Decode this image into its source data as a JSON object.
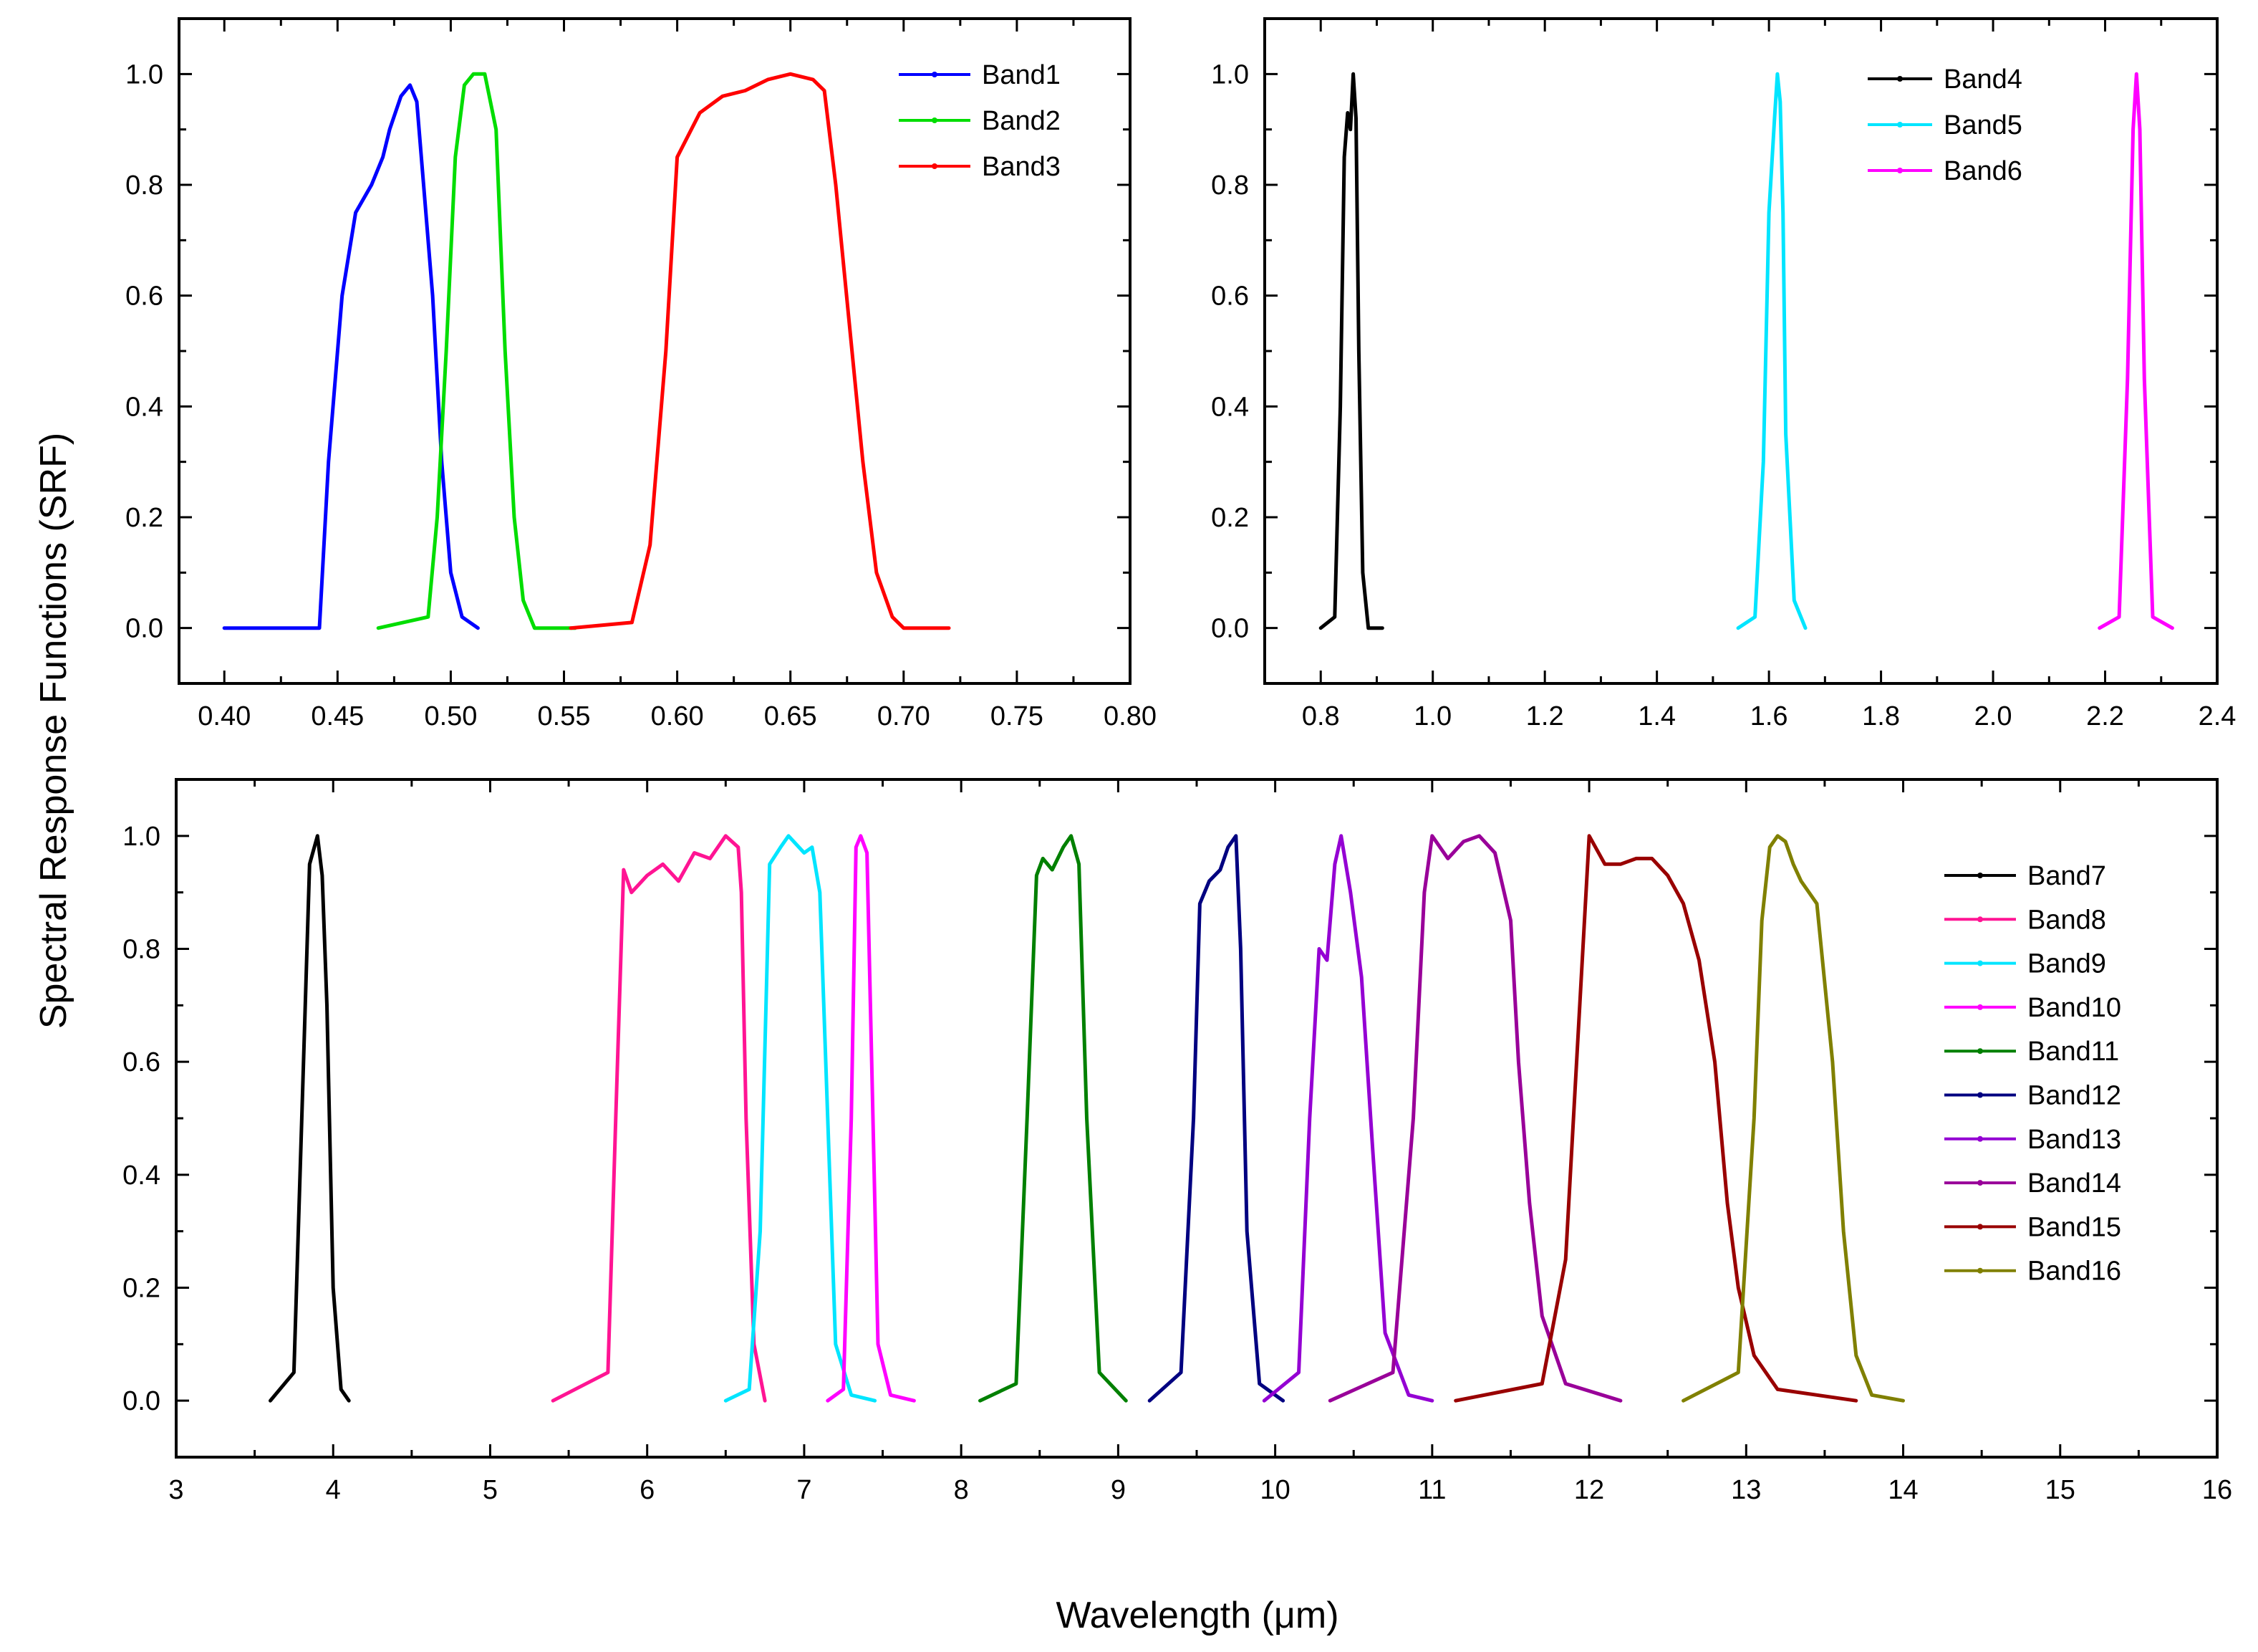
{
  "figure": {
    "ylabel": "Spectral Response Functions (SRF)",
    "xlabel": "Wavelength (μm)"
  },
  "chart_data": [
    {
      "type": "line",
      "panel": "top-left",
      "xlim": [
        0.38,
        0.8
      ],
      "ylim": [
        -0.1,
        1.1
      ],
      "xticks": [
        "0.40",
        "0.45",
        "0.50",
        "0.55",
        "0.60",
        "0.65",
        "0.70",
        "0.75",
        "0.80"
      ],
      "yticks": [
        "0.0",
        "0.2",
        "0.4",
        "0.6",
        "0.8",
        "1.0"
      ],
      "legend_position": "top-right",
      "series": [
        {
          "name": "Band1",
          "color": "#0000ff",
          "x": [
            0.4,
            0.442,
            0.446,
            0.452,
            0.458,
            0.465,
            0.47,
            0.473,
            0.478,
            0.482,
            0.485,
            0.488,
            0.492,
            0.496,
            0.5,
            0.505,
            0.512
          ],
          "y": [
            0.0,
            0.0,
            0.3,
            0.6,
            0.75,
            0.8,
            0.85,
            0.9,
            0.96,
            0.98,
            0.95,
            0.8,
            0.6,
            0.3,
            0.1,
            0.02,
            0.0
          ]
        },
        {
          "name": "Band2",
          "color": "#00dd00",
          "x": [
            0.468,
            0.49,
            0.494,
            0.498,
            0.502,
            0.506,
            0.51,
            0.515,
            0.52,
            0.524,
            0.528,
            0.532,
            0.537,
            0.555
          ],
          "y": [
            0.0,
            0.02,
            0.2,
            0.5,
            0.85,
            0.98,
            1.0,
            1.0,
            0.9,
            0.5,
            0.2,
            0.05,
            0.0,
            0.0
          ]
        },
        {
          "name": "Band3",
          "color": "#ff0000",
          "x": [
            0.553,
            0.58,
            0.588,
            0.595,
            0.6,
            0.61,
            0.62,
            0.63,
            0.64,
            0.65,
            0.66,
            0.665,
            0.67,
            0.676,
            0.682,
            0.688,
            0.695,
            0.7,
            0.72
          ],
          "y": [
            0.0,
            0.01,
            0.15,
            0.5,
            0.85,
            0.93,
            0.96,
            0.97,
            0.99,
            1.0,
            0.99,
            0.97,
            0.8,
            0.55,
            0.3,
            0.1,
            0.02,
            0.0,
            0.0
          ]
        }
      ]
    },
    {
      "type": "line",
      "panel": "top-right",
      "xlim": [
        0.7,
        2.4
      ],
      "ylim": [
        -0.1,
        1.1
      ],
      "xticks": [
        "0.8",
        "1.0",
        "1.2",
        "1.4",
        "1.6",
        "1.8",
        "2.0",
        "2.2",
        "2.4"
      ],
      "yticks": [
        "0.0",
        "0.2",
        "0.4",
        "0.6",
        "0.8",
        "1.0"
      ],
      "legend_position": "top-right",
      "series": [
        {
          "name": "Band4",
          "color": "#000000",
          "x": [
            0.8,
            0.825,
            0.835,
            0.842,
            0.848,
            0.853,
            0.858,
            0.863,
            0.868,
            0.875,
            0.885,
            0.91
          ],
          "y": [
            0.0,
            0.02,
            0.4,
            0.85,
            0.93,
            0.9,
            1.0,
            0.92,
            0.5,
            0.1,
            0.0,
            0.0
          ]
        },
        {
          "name": "Band5",
          "color": "#00e5ff",
          "x": [
            1.545,
            1.575,
            1.59,
            1.6,
            1.61,
            1.615,
            1.62,
            1.625,
            1.63,
            1.645,
            1.665
          ],
          "y": [
            0.0,
            0.02,
            0.3,
            0.75,
            0.92,
            1.0,
            0.95,
            0.75,
            0.35,
            0.05,
            0.0
          ]
        },
        {
          "name": "Band6",
          "color": "#ff00ff",
          "x": [
            2.19,
            2.225,
            2.24,
            2.25,
            2.256,
            2.262,
            2.27,
            2.285,
            2.32
          ],
          "y": [
            0.0,
            0.02,
            0.45,
            0.9,
            1.0,
            0.9,
            0.45,
            0.02,
            0.0
          ]
        }
      ]
    },
    {
      "type": "line",
      "panel": "bottom",
      "xlim": [
        3,
        16
      ],
      "ylim": [
        -0.1,
        1.1
      ],
      "xticks": [
        "3",
        "4",
        "5",
        "6",
        "7",
        "8",
        "9",
        "10",
        "11",
        "12",
        "13",
        "14",
        "15",
        "16"
      ],
      "yticks": [
        "0.0",
        "0.2",
        "0.4",
        "0.6",
        "0.8",
        "1.0"
      ],
      "legend_position": "right",
      "series": [
        {
          "name": "Band7",
          "color": "#000000",
          "x": [
            3.6,
            3.75,
            3.8,
            3.85,
            3.9,
            3.93,
            3.96,
            4.0,
            4.05,
            4.1
          ],
          "y": [
            0.0,
            0.05,
            0.5,
            0.95,
            1.0,
            0.93,
            0.7,
            0.2,
            0.02,
            0.0
          ]
        },
        {
          "name": "Band8",
          "color": "#ff1493",
          "x": [
            5.4,
            5.75,
            5.8,
            5.85,
            5.9,
            6.0,
            6.1,
            6.2,
            6.3,
            6.4,
            6.5,
            6.58,
            6.6,
            6.63,
            6.68,
            6.75
          ],
          "y": [
            0.0,
            0.05,
            0.5,
            0.94,
            0.9,
            0.93,
            0.95,
            0.92,
            0.97,
            0.96,
            1.0,
            0.98,
            0.9,
            0.5,
            0.1,
            0.0
          ]
        },
        {
          "name": "Band9",
          "color": "#00e5ff",
          "x": [
            6.5,
            6.65,
            6.72,
            6.78,
            6.85,
            6.9,
            7.0,
            7.05,
            7.1,
            7.15,
            7.2,
            7.3,
            7.45
          ],
          "y": [
            0.0,
            0.02,
            0.3,
            0.95,
            0.98,
            1.0,
            0.97,
            0.98,
            0.9,
            0.5,
            0.1,
            0.01,
            0.0
          ]
        },
        {
          "name": "Band10",
          "color": "#ff00ff",
          "x": [
            7.15,
            7.25,
            7.3,
            7.33,
            7.36,
            7.4,
            7.43,
            7.47,
            7.55,
            7.7
          ],
          "y": [
            0.0,
            0.02,
            0.5,
            0.98,
            1.0,
            0.97,
            0.6,
            0.1,
            0.01,
            0.0
          ]
        },
        {
          "name": "Band11",
          "color": "#008000",
          "x": [
            8.12,
            8.35,
            8.42,
            8.48,
            8.52,
            8.58,
            8.65,
            8.7,
            8.75,
            8.8,
            8.88,
            9.05
          ],
          "y": [
            0.0,
            0.03,
            0.5,
            0.93,
            0.96,
            0.94,
            0.98,
            1.0,
            0.95,
            0.5,
            0.05,
            0.0
          ]
        },
        {
          "name": "Band12",
          "color": "#000080",
          "x": [
            9.2,
            9.4,
            9.48,
            9.52,
            9.58,
            9.65,
            9.7,
            9.75,
            9.78,
            9.82,
            9.9,
            10.05
          ],
          "y": [
            0.0,
            0.05,
            0.5,
            0.88,
            0.92,
            0.94,
            0.98,
            1.0,
            0.8,
            0.3,
            0.03,
            0.0
          ]
        },
        {
          "name": "Band13",
          "color": "#9400d3",
          "x": [
            9.93,
            10.15,
            10.22,
            10.28,
            10.33,
            10.38,
            10.42,
            10.48,
            10.55,
            10.62,
            10.7,
            10.85,
            11.0
          ],
          "y": [
            0.0,
            0.05,
            0.5,
            0.8,
            0.78,
            0.95,
            1.0,
            0.9,
            0.75,
            0.45,
            0.12,
            0.01,
            0.0
          ]
        },
        {
          "name": "Band14",
          "color": "#990099",
          "x": [
            10.35,
            10.75,
            10.88,
            10.95,
            11.0,
            11.1,
            11.2,
            11.3,
            11.4,
            11.5,
            11.55,
            11.62,
            11.7,
            11.85,
            12.2
          ],
          "y": [
            0.0,
            0.05,
            0.5,
            0.9,
            1.0,
            0.96,
            0.99,
            1.0,
            0.97,
            0.85,
            0.6,
            0.35,
            0.15,
            0.03,
            0.0
          ]
        },
        {
          "name": "Band15",
          "color": "#990000",
          "x": [
            11.15,
            11.7,
            11.85,
            11.95,
            12.0,
            12.1,
            12.2,
            12.3,
            12.4,
            12.5,
            12.6,
            12.7,
            12.8,
            12.88,
            12.95,
            13.05,
            13.2,
            13.7
          ],
          "y": [
            0.0,
            0.03,
            0.25,
            0.75,
            1.0,
            0.95,
            0.95,
            0.96,
            0.96,
            0.93,
            0.88,
            0.78,
            0.6,
            0.35,
            0.2,
            0.08,
            0.02,
            0.0
          ]
        },
        {
          "name": "Band16",
          "color": "#808000",
          "x": [
            12.6,
            12.95,
            13.05,
            13.1,
            13.15,
            13.2,
            13.25,
            13.3,
            13.35,
            13.45,
            13.55,
            13.62,
            13.7,
            13.8,
            14.0
          ],
          "y": [
            0.0,
            0.05,
            0.5,
            0.85,
            0.98,
            1.0,
            0.99,
            0.95,
            0.92,
            0.88,
            0.6,
            0.3,
            0.08,
            0.01,
            0.0
          ]
        }
      ]
    }
  ]
}
